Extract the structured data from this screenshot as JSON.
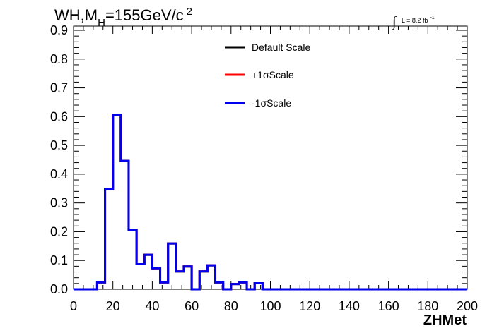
{
  "title": {
    "main": "WH,M",
    "subscript": "H",
    "suffix": "=155GeV/c",
    "superscript": "2"
  },
  "luminosity": {
    "integral_symbol": "∫",
    "text": "L = 8.2 fb",
    "superscript": "-1"
  },
  "chart_data": {
    "type": "line",
    "xlabel": "ZHMet",
    "ylabel": "",
    "xlim": [
      0,
      200
    ],
    "ylim": [
      0,
      0.92
    ],
    "x_ticks": [
      0,
      20,
      40,
      60,
      80,
      100,
      120,
      140,
      160,
      180,
      200
    ],
    "x_tick_labels": [
      "0",
      "20",
      "40",
      "60",
      "80",
      "100",
      "120",
      "140",
      "160",
      "180",
      "200"
    ],
    "y_ticks": [
      0.0,
      0.1,
      0.2,
      0.3,
      0.4,
      0.5,
      0.6,
      0.7,
      0.8,
      0.9
    ],
    "y_tick_labels": [
      "0.0",
      "0.1",
      "0.2",
      "0.3",
      "0.4",
      "0.5",
      "0.6",
      "0.7",
      "0.8",
      "0.9"
    ],
    "bin_width": 4,
    "bin_edges_start": 0,
    "legend_position": "top-center",
    "series": [
      {
        "name": "Default Scale",
        "color": "#000000",
        "values": [
          0,
          0,
          0,
          0.024,
          0.348,
          0.607,
          0.446,
          0.207,
          0.087,
          0.12,
          0.073,
          0.024,
          0.159,
          0.062,
          0.079,
          0,
          0.062,
          0.083,
          0.024,
          0,
          0.018,
          0.024,
          0,
          0.021,
          0,
          0,
          0,
          0,
          0,
          0,
          0,
          0,
          0,
          0,
          0,
          0,
          0,
          0,
          0,
          0,
          0,
          0,
          0,
          0,
          0,
          0,
          0,
          0,
          0,
          0
        ]
      },
      {
        "name": "+1σScale",
        "color": "#ff0000",
        "values": [
          0,
          0,
          0,
          0.024,
          0.348,
          0.607,
          0.446,
          0.207,
          0.087,
          0.12,
          0.073,
          0.024,
          0.159,
          0.062,
          0.079,
          0,
          0.062,
          0.083,
          0.024,
          0,
          0.018,
          0.024,
          0,
          0.021,
          0,
          0,
          0,
          0,
          0,
          0,
          0,
          0,
          0,
          0,
          0,
          0,
          0,
          0,
          0,
          0,
          0,
          0,
          0,
          0,
          0,
          0,
          0,
          0,
          0,
          0
        ]
      },
      {
        "name": "-1σScale",
        "color": "#0000ee",
        "values": [
          0,
          0,
          0,
          0.024,
          0.348,
          0.607,
          0.446,
          0.207,
          0.087,
          0.12,
          0.073,
          0.024,
          0.159,
          0.062,
          0.079,
          0,
          0.062,
          0.083,
          0.024,
          0,
          0.018,
          0.024,
          0,
          0.021,
          0,
          0,
          0,
          0,
          0,
          0,
          0,
          0,
          0,
          0,
          0,
          0,
          0,
          0,
          0,
          0,
          0,
          0,
          0,
          0,
          0,
          0,
          0,
          0,
          0,
          0
        ]
      }
    ]
  }
}
